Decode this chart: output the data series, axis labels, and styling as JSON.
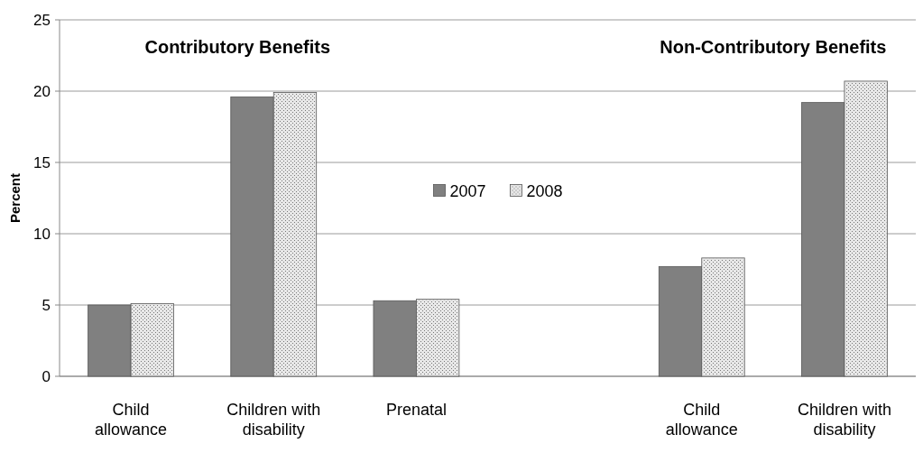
{
  "chart_data": {
    "type": "bar",
    "ylabel": "Percent",
    "categories": [
      "Child allowance",
      "Children with disability",
      "Prenatal",
      null,
      "Child allowance",
      "Children with disability"
    ],
    "series": [
      {
        "name": "2007",
        "color": "#808080",
        "values": [
          5.0,
          19.6,
          5.3,
          null,
          7.7,
          19.2
        ]
      },
      {
        "name": "2008",
        "color": "#e8e8e8",
        "values": [
          5.1,
          19.9,
          5.4,
          null,
          8.3,
          20.7
        ]
      }
    ],
    "ylim": [
      0,
      25
    ],
    "yticks": [
      0,
      5,
      10,
      15,
      20,
      25
    ],
    "grid": "y",
    "legend": "center",
    "annotations": [
      "Contributory Benefits",
      "Non-Contributory Benefits"
    ]
  }
}
